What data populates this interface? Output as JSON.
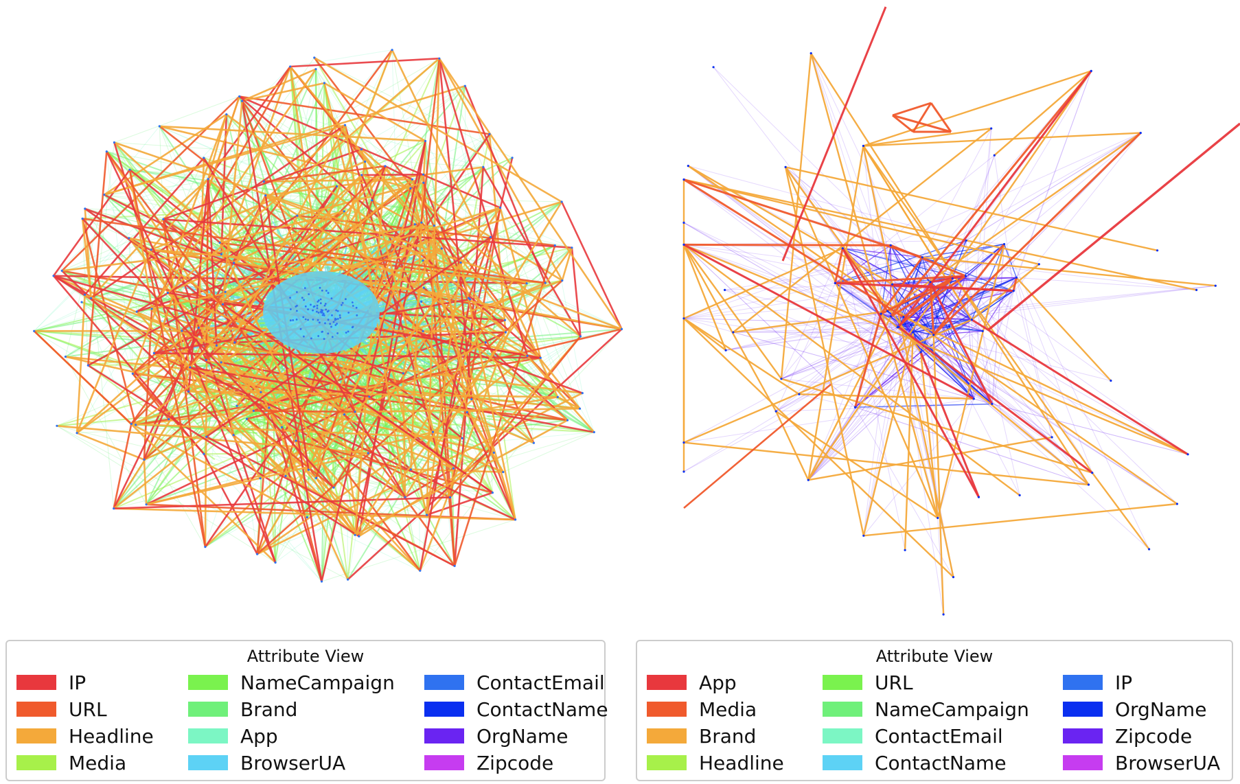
{
  "panels": [
    {
      "id": "left",
      "legend": {
        "title": "Attribute View",
        "items": [
          {
            "label": "IP",
            "color": "#e8383d"
          },
          {
            "label": "URL",
            "color": "#f05a2c"
          },
          {
            "label": "Headline",
            "color": "#f4a93a"
          },
          {
            "label": "Media",
            "color": "#a7f04a"
          },
          {
            "label": "NameCampaign",
            "color": "#7af24e"
          },
          {
            "label": "Brand",
            "color": "#6ff07a"
          },
          {
            "label": "App",
            "color": "#7cf6c4"
          },
          {
            "label": "BrowserUA",
            "color": "#5dd2f5"
          },
          {
            "label": "ContactEmail",
            "color": "#2f72f0"
          },
          {
            "label": "ContactName",
            "color": "#0a2ff0"
          },
          {
            "label": "OrgName",
            "color": "#6a24f2"
          },
          {
            "label": "Zipcode",
            "color": "#c63cf0"
          }
        ]
      }
    },
    {
      "id": "right",
      "legend": {
        "title": "Attribute View",
        "items": [
          {
            "label": "App",
            "color": "#e8383d"
          },
          {
            "label": "Media",
            "color": "#f05a2c"
          },
          {
            "label": "Brand",
            "color": "#f4a93a"
          },
          {
            "label": "Headline",
            "color": "#a7f04a"
          },
          {
            "label": "URL",
            "color": "#7af24e"
          },
          {
            "label": "NameCampaign",
            "color": "#6ff07a"
          },
          {
            "label": "ContactEmail",
            "color": "#7cf6c4"
          },
          {
            "label": "ContactName",
            "color": "#5dd2f5"
          },
          {
            "label": "IP",
            "color": "#2f72f0"
          },
          {
            "label": "OrgName",
            "color": "#0a2ff0"
          },
          {
            "label": "Zipcode",
            "color": "#6a24f2"
          },
          {
            "label": "BrowserUA",
            "color": "#c63cf0"
          }
        ]
      }
    }
  ]
}
